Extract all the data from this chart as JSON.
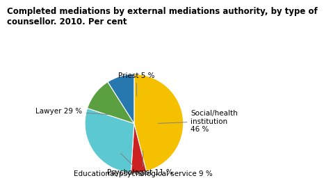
{
  "title": "Completed mediations by external mediations authority, by type of\ncounsellor. 2010. Per cent",
  "slices": [
    {
      "label": "Social/health\ninstitution\n46 %",
      "value": 46,
      "color": "#F5C000"
    },
    {
      "label": "Priest 5 %",
      "value": 5,
      "color": "#CC2222"
    },
    {
      "label": "Lawyer 29 %",
      "value": 29,
      "color": "#5BC8D2"
    },
    {
      "label": "Psychologist 11 %",
      "value": 11,
      "color": "#5BA040"
    },
    {
      "label": "Educational/psychological service 9 %",
      "value": 9,
      "color": "#2878B0"
    }
  ],
  "background_color": "#ffffff",
  "title_fontsize": 8.5,
  "label_fontsize": 7.5,
  "title_bold": true
}
